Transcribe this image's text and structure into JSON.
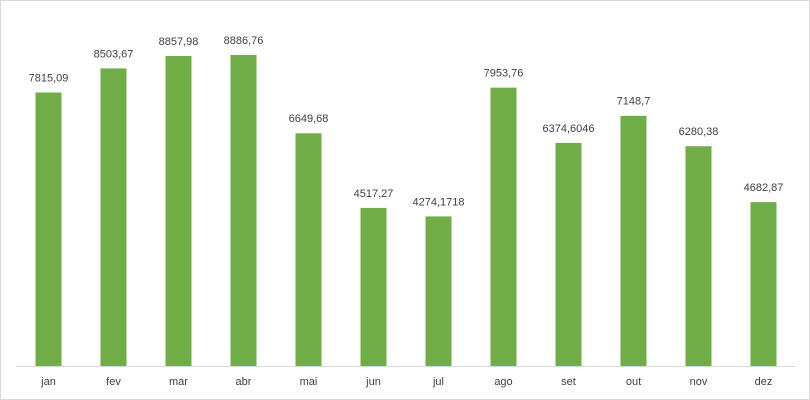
{
  "chart_data": {
    "type": "bar",
    "categories": [
      "jan",
      "fev",
      "mar",
      "abr",
      "mai",
      "jun",
      "jul",
      "ago",
      "set",
      "out",
      "nov",
      "dez"
    ],
    "values": [
      7815.09,
      8503.67,
      8857.98,
      8886.76,
      6649.68,
      4517.27,
      4274.1718,
      7953.76,
      6374.6046,
      7148.7,
      6280.38,
      4682.87
    ],
    "value_labels": [
      "7815,09",
      "8503,67",
      "8857,98",
      "8886,76",
      "6649,68",
      "4517,27",
      "4274,1718",
      "7953,76",
      "6374,6046",
      "7148,7",
      "6280,38",
      "4682,87"
    ],
    "color": "#70ad47"
  }
}
